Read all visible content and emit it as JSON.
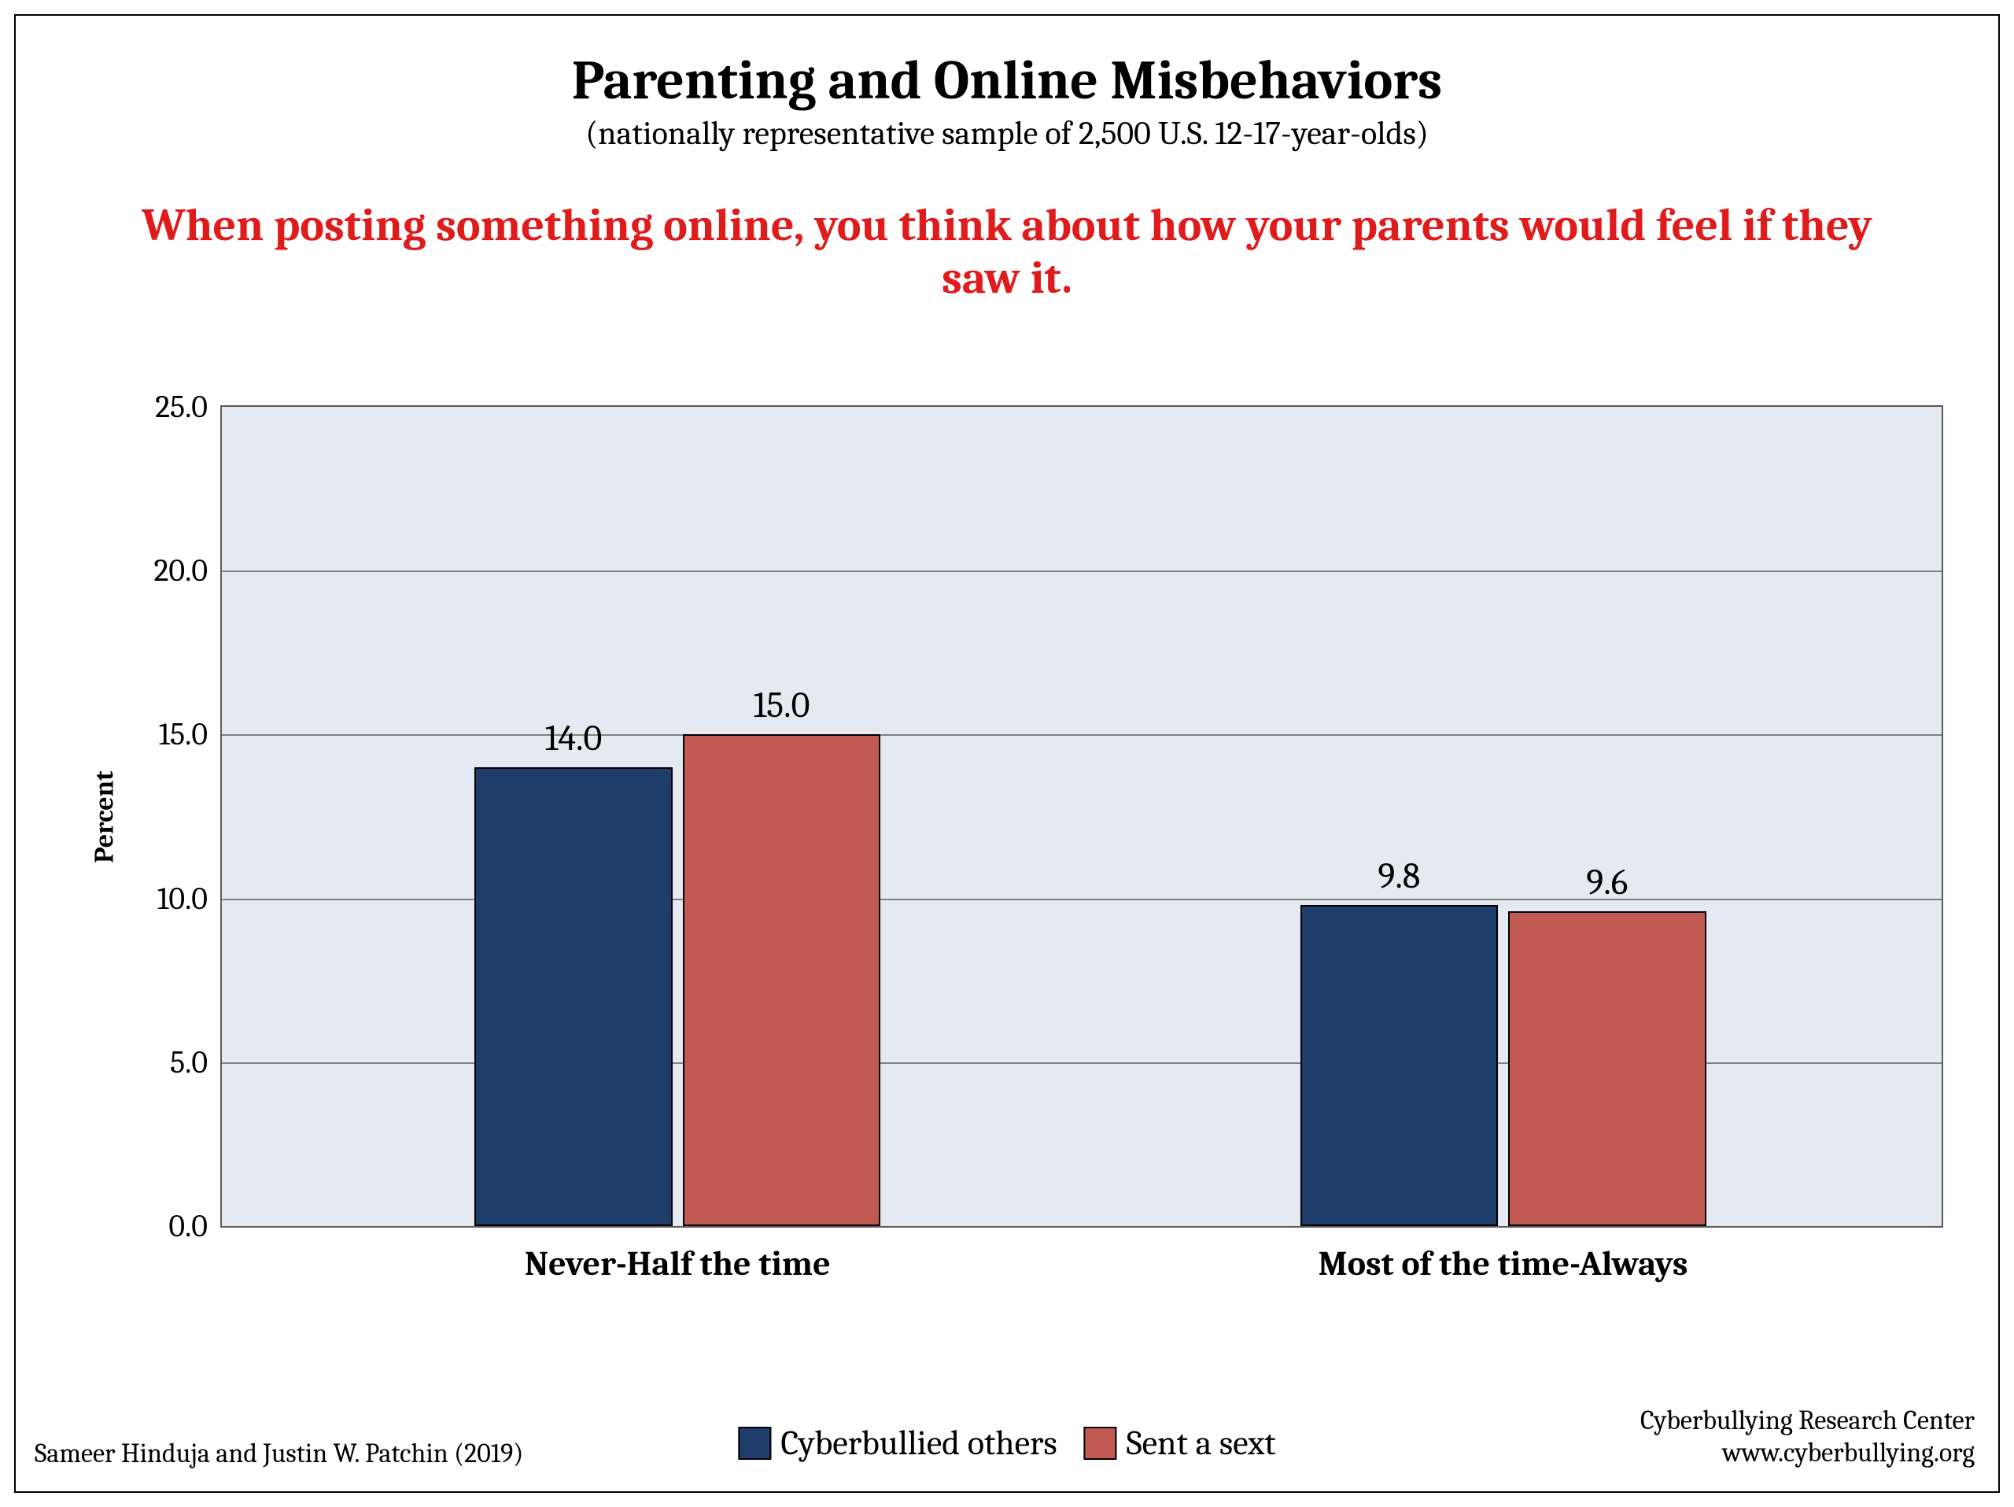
{
  "title": "Parenting and Online Misbehaviors",
  "subtitle": "(nationally representative sample of 2,500 U.S. 12-17-year-olds)",
  "question": "When posting something online, you think about how your parents would feel if they saw it.",
  "chart": {
    "type": "bar",
    "ylabel": "Percent",
    "ylim": [
      0,
      25
    ],
    "ytick_step": 5,
    "yticks": [
      "0.0",
      "5.0",
      "10.0",
      "15.0",
      "20.0",
      "25.0"
    ],
    "categories": [
      "Never-Half the time",
      "Most of the time-Always"
    ],
    "series": [
      {
        "name": "Cyberbullied others",
        "color": "#1f3d6b",
        "values": [
          14.0,
          9.8
        ],
        "labels": [
          "14.0",
          "9.8"
        ]
      },
      {
        "name": "Sent a sext",
        "color": "#c05a52",
        "values": [
          15.0,
          9.6
        ],
        "labels": [
          "15.0",
          "9.6"
        ]
      }
    ],
    "background_color": "#e4e9f2",
    "grid_color": "#808080",
    "border_color": "#5a5a5a",
    "bar_border_color": "#000000",
    "bar_rel_width": 0.115,
    "group_gap_rel": 0.006,
    "group_centers_rel": [
      0.265,
      0.745
    ],
    "category_label_fontsize": 44,
    "ytick_fontsize": 40,
    "ylabel_fontsize": 34,
    "bar_label_fontsize": 46
  },
  "legend_fontsize": 44,
  "title_fontsize": 70,
  "subtitle_fontsize": 42,
  "question_fontsize": 58,
  "question_color": "#e01b1b",
  "credit_left": "Sameer Hinduja and Justin W. Patchin (2019)",
  "credit_right_line1": "Cyberbullying Research Center",
  "credit_right_line2": "www.cyberbullying.org",
  "credit_fontsize": 34
}
